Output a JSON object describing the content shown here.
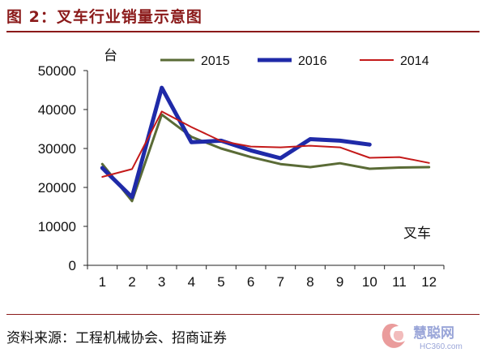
{
  "figure": {
    "title": "图 2：叉车行业销量示意图",
    "source": "资料来源：工程机械协会、招商证券",
    "watermark_text": "慧聪网",
    "watermark_sub": "HC360.com"
  },
  "chart_data": {
    "type": "line",
    "title": "",
    "xlabel": "叉车",
    "ylabel": "台",
    "x": [
      1,
      2,
      3,
      4,
      5,
      6,
      7,
      8,
      9,
      10,
      11,
      12
    ],
    "ylim": [
      0,
      50000
    ],
    "yticks": [
      0,
      10000,
      20000,
      30000,
      40000,
      50000
    ],
    "grid": false,
    "legend_position": "top",
    "series": [
      {
        "name": "2015",
        "color": "#5a6b36",
        "width": 3,
        "values": [
          26000,
          16500,
          38700,
          33000,
          30000,
          27800,
          26000,
          25200,
          26200,
          24800,
          25100,
          25200
        ]
      },
      {
        "name": "2016",
        "color": "#1f2aa8",
        "width": 5,
        "values": [
          25000,
          17500,
          45600,
          31600,
          32000,
          29500,
          27500,
          32400,
          32000,
          31000,
          null,
          null
        ]
      },
      {
        "name": "2014",
        "color": "#c41a1a",
        "width": 2,
        "values": [
          22700,
          24700,
          39500,
          35500,
          31900,
          30500,
          30300,
          30700,
          30300,
          27600,
          27800,
          26300
        ]
      }
    ]
  }
}
